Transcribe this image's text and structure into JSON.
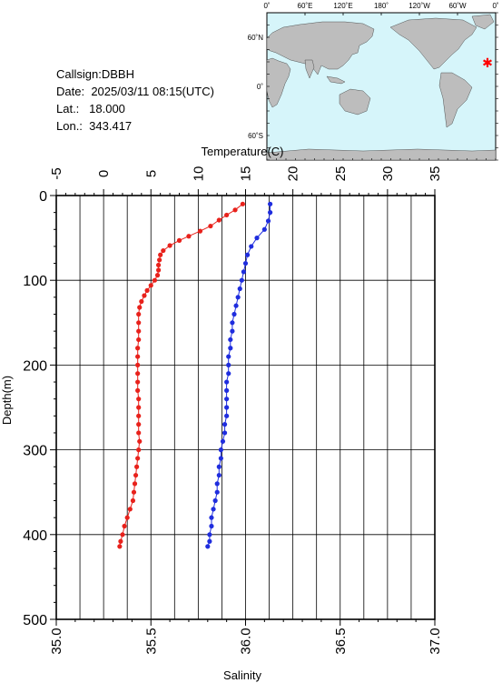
{
  "station": {
    "callsign_label": "Callsign:",
    "callsign": "DBBH",
    "date_label": "Date:",
    "date": "2025/03/11 08:15(UTC)",
    "lat_label": "Lat.:",
    "lat": "18.000",
    "lon_label": "Lon.:",
    "lon": "343.417"
  },
  "map": {
    "top_ticks": [
      "0˚",
      "60˚E",
      "120˚E",
      "180˚",
      "120˚W",
      "60˚W",
      "0˚"
    ],
    "left_ticks": [
      "60˚N",
      "0˚",
      "60˚S"
    ],
    "ocean_color": "#d6f5fa",
    "land_color": "#bdbdbd",
    "marker_color": "#ff0000"
  },
  "chart_data": {
    "type": "scatter",
    "ylabel": "Depth(m)",
    "ylim": [
      0,
      500
    ],
    "y_ticks": [
      0,
      100,
      200,
      300,
      400,
      500
    ],
    "grid": true,
    "temperature_axis": {
      "label": "Temperature(C)",
      "position": "top",
      "lim": [
        -5,
        35
      ],
      "ticks": [
        -5,
        0,
        5,
        10,
        15,
        20,
        25,
        30,
        35
      ]
    },
    "salinity_axis": {
      "label": "Salinity",
      "position": "bottom",
      "lim": [
        35.0,
        37.0
      ],
      "ticks": [
        "35.0",
        "35.5",
        "36.0",
        "36.5",
        "37.0"
      ]
    },
    "series": [
      {
        "color": "#e8211b",
        "axis": "temperature",
        "points": [
          [
            14.7,
            10
          ],
          [
            13.9,
            17
          ],
          [
            13.0,
            23
          ],
          [
            12.2,
            29
          ],
          [
            11.3,
            36
          ],
          [
            10.2,
            42
          ],
          [
            9.0,
            48
          ],
          [
            8.0,
            53
          ],
          [
            7.0,
            59
          ],
          [
            6.3,
            65
          ],
          [
            6.0,
            70
          ],
          [
            5.9,
            76
          ],
          [
            5.8,
            82
          ],
          [
            5.8,
            88
          ],
          [
            5.7,
            94
          ],
          [
            5.4,
            100
          ],
          [
            5.0,
            106
          ],
          [
            4.6,
            112
          ],
          [
            4.3,
            118
          ],
          [
            4.0,
            125
          ],
          [
            3.8,
            132
          ],
          [
            3.7,
            140
          ],
          [
            3.7,
            150
          ],
          [
            3.7,
            160
          ],
          [
            3.7,
            170
          ],
          [
            3.6,
            180
          ],
          [
            3.6,
            190
          ],
          [
            3.6,
            200
          ],
          [
            3.6,
            210
          ],
          [
            3.6,
            220
          ],
          [
            3.6,
            230
          ],
          [
            3.7,
            240
          ],
          [
            3.7,
            250
          ],
          [
            3.7,
            260
          ],
          [
            3.7,
            270
          ],
          [
            3.7,
            280
          ],
          [
            3.8,
            290
          ],
          [
            3.7,
            300
          ],
          [
            3.6,
            310
          ],
          [
            3.5,
            320
          ],
          [
            3.4,
            330
          ],
          [
            3.3,
            340
          ],
          [
            3.2,
            350
          ],
          [
            3.1,
            360
          ],
          [
            2.8,
            370
          ],
          [
            2.5,
            380
          ],
          [
            2.2,
            390
          ],
          [
            2.0,
            400
          ],
          [
            1.8,
            408
          ],
          [
            1.7,
            414
          ]
        ]
      },
      {
        "color": "#1f2dde",
        "axis": "salinity",
        "points": [
          [
            36.13,
            10
          ],
          [
            36.13,
            20
          ],
          [
            36.12,
            30
          ],
          [
            36.1,
            40
          ],
          [
            36.06,
            50
          ],
          [
            36.03,
            60
          ],
          [
            36.01,
            70
          ],
          [
            36.0,
            80
          ],
          [
            35.99,
            90
          ],
          [
            35.98,
            100
          ],
          [
            35.97,
            110
          ],
          [
            35.96,
            120
          ],
          [
            35.95,
            130
          ],
          [
            35.94,
            140
          ],
          [
            35.93,
            150
          ],
          [
            35.93,
            160
          ],
          [
            35.92,
            170
          ],
          [
            35.92,
            180
          ],
          [
            35.91,
            190
          ],
          [
            35.91,
            200
          ],
          [
            35.91,
            210
          ],
          [
            35.9,
            220
          ],
          [
            35.9,
            230
          ],
          [
            35.9,
            240
          ],
          [
            35.9,
            250
          ],
          [
            35.9,
            260
          ],
          [
            35.89,
            270
          ],
          [
            35.89,
            280
          ],
          [
            35.88,
            290
          ],
          [
            35.87,
            300
          ],
          [
            35.87,
            310
          ],
          [
            35.86,
            320
          ],
          [
            35.86,
            330
          ],
          [
            35.85,
            340
          ],
          [
            35.85,
            350
          ],
          [
            35.84,
            360
          ],
          [
            35.83,
            370
          ],
          [
            35.82,
            380
          ],
          [
            35.82,
            390
          ],
          [
            35.81,
            400
          ],
          [
            35.81,
            408
          ],
          [
            35.8,
            414
          ]
        ]
      }
    ]
  }
}
